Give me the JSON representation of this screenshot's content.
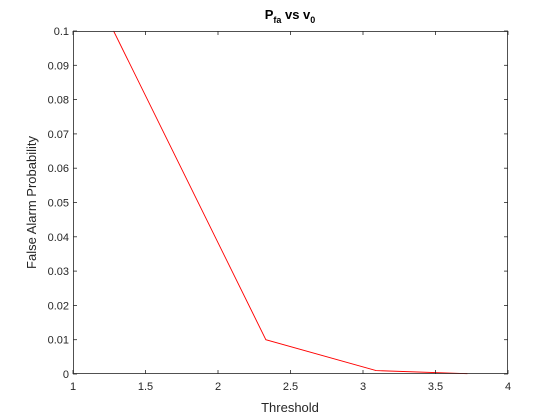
{
  "colors": {
    "line": "#ff0000",
    "axis": "#262626",
    "background": "#ffffff"
  },
  "chart_data": {
    "type": "line",
    "title": {
      "main_1": "P",
      "sub_1": "fa",
      "main_2": " vs v",
      "sub_2": "0"
    },
    "xlabel": "Threshold",
    "ylabel": "False Alarm Probability",
    "xlim": [
      1,
      4
    ],
    "ylim": [
      0,
      0.1
    ],
    "x_ticks": [
      "1",
      "1.5",
      "2",
      "2.5",
      "3",
      "3.5",
      "4"
    ],
    "y_ticks": [
      "0",
      "0.01",
      "0.02",
      "0.03",
      "0.04",
      "0.05",
      "0.06",
      "0.07",
      "0.08",
      "0.09",
      "0.1"
    ],
    "grid": false,
    "series": [
      {
        "x": [
          1.28,
          2.33,
          3.09,
          3.72
        ],
        "y": [
          0.1,
          0.01,
          0.001,
          0.0001
        ]
      }
    ]
  }
}
